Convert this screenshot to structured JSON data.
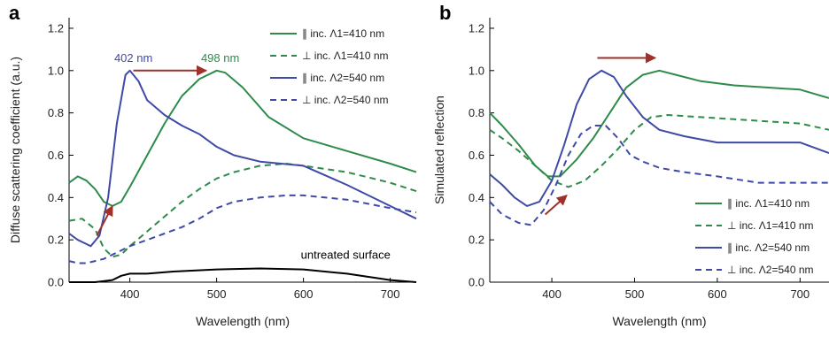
{
  "chart_data": [
    {
      "type": "line",
      "panel_label": "a",
      "title": "",
      "xlabel": "Wavelength (nm)",
      "ylabel": "Diffuse scattering coefficient (a.u.)",
      "xlim": [
        330,
        730
      ],
      "ylim": [
        0,
        1.25
      ],
      "xticks": [
        400,
        500,
        600,
        700
      ],
      "yticks": [
        0.0,
        0.2,
        0.4,
        0.6,
        0.8,
        1.0,
        1.2
      ],
      "grid": false,
      "legend_position": "top-right",
      "series": [
        {
          "name": "∥ inc. Λ1=410 nm",
          "color": "#2e8b4a",
          "dash": "solid",
          "x": [
            330,
            340,
            350,
            360,
            370,
            380,
            390,
            400,
            420,
            440,
            460,
            480,
            500,
            510,
            530,
            560,
            600,
            650,
            700,
            730
          ],
          "y": [
            0.47,
            0.5,
            0.48,
            0.44,
            0.38,
            0.36,
            0.38,
            0.45,
            0.6,
            0.75,
            0.88,
            0.96,
            1.0,
            0.99,
            0.92,
            0.78,
            0.68,
            0.62,
            0.56,
            0.52
          ]
        },
        {
          "name": "⊥ inc. Λ1=410 nm",
          "color": "#2e8b4a",
          "dash": "dashed",
          "x": [
            330,
            345,
            360,
            370,
            380,
            390,
            400,
            420,
            440,
            460,
            480,
            500,
            520,
            550,
            580,
            600,
            650,
            700,
            730
          ],
          "y": [
            0.29,
            0.3,
            0.25,
            0.16,
            0.12,
            0.13,
            0.17,
            0.24,
            0.31,
            0.38,
            0.44,
            0.49,
            0.52,
            0.55,
            0.56,
            0.55,
            0.52,
            0.47,
            0.43
          ]
        },
        {
          "name": "∥ inc. Λ2=540 nm",
          "color": "#3f4aa6",
          "dash": "solid",
          "x": [
            330,
            340,
            350,
            355,
            365,
            375,
            385,
            395,
            400,
            410,
            420,
            440,
            460,
            480,
            500,
            520,
            550,
            600,
            650,
            700,
            730
          ],
          "y": [
            0.23,
            0.2,
            0.18,
            0.17,
            0.22,
            0.4,
            0.75,
            0.98,
            1.0,
            0.95,
            0.86,
            0.79,
            0.74,
            0.7,
            0.64,
            0.6,
            0.57,
            0.55,
            0.46,
            0.36,
            0.3
          ]
        },
        {
          "name": "⊥ inc. Λ2=540 nm",
          "color": "#3f4aa6",
          "dash": "dashed",
          "x": [
            330,
            340,
            350,
            360,
            370,
            380,
            390,
            400,
            420,
            440,
            460,
            480,
            500,
            520,
            550,
            580,
            600,
            650,
            700,
            730
          ],
          "y": [
            0.1,
            0.09,
            0.09,
            0.1,
            0.11,
            0.13,
            0.15,
            0.17,
            0.2,
            0.23,
            0.26,
            0.3,
            0.35,
            0.38,
            0.4,
            0.41,
            0.41,
            0.39,
            0.35,
            0.33
          ]
        },
        {
          "name": "",
          "color": "#000000",
          "dash": "solid",
          "x": [
            330,
            360,
            380,
            390,
            400,
            420,
            450,
            500,
            550,
            600,
            650,
            700,
            730
          ],
          "y": [
            0.0,
            0.0,
            0.01,
            0.03,
            0.04,
            0.04,
            0.05,
            0.06,
            0.065,
            0.06,
            0.04,
            0.01,
            0.0
          ]
        }
      ],
      "annotations": [
        {
          "text": "402 nm",
          "color": "#3f4aa6",
          "x": 382,
          "y": 1.04
        },
        {
          "text": "498 nm",
          "color": "#2e8b4a",
          "x": 482,
          "y": 1.04
        },
        {
          "text": "untreated surface",
          "color": "#000000",
          "x": 597,
          "y": 0.11
        }
      ],
      "arrows": [
        {
          "color": "#a0302a",
          "x1": 362,
          "y1": 0.22,
          "x2": 380,
          "y2": 0.36
        },
        {
          "color": "#a0302a",
          "x1": 404,
          "y1": 1.0,
          "x2": 488,
          "y2": 1.0
        }
      ]
    },
    {
      "type": "line",
      "panel_label": "b",
      "title": "",
      "xlabel": "Wavelength (nm)",
      "ylabel": "Simulated reflection",
      "xlim": [
        325,
        735
      ],
      "ylim": [
        0,
        1.25
      ],
      "xticks": [
        400,
        500,
        600,
        700
      ],
      "yticks": [
        0.0,
        0.2,
        0.4,
        0.6,
        0.8,
        1.0,
        1.2
      ],
      "grid": false,
      "legend_position": "bottom-right",
      "series": [
        {
          "name": "∥ inc. Λ1=410 nm",
          "color": "#2e8b4a",
          "dash": "solid",
          "x": [
            325,
            340,
            360,
            380,
            395,
            410,
            430,
            450,
            470,
            490,
            510,
            530,
            550,
            580,
            620,
            660,
            700,
            735
          ],
          "y": [
            0.8,
            0.74,
            0.65,
            0.55,
            0.5,
            0.5,
            0.58,
            0.68,
            0.8,
            0.92,
            0.98,
            1.0,
            0.98,
            0.95,
            0.93,
            0.92,
            0.91,
            0.87
          ]
        },
        {
          "name": "⊥ inc. Λ1=410 nm",
          "color": "#2e8b4a",
          "dash": "dashed",
          "x": [
            325,
            340,
            360,
            380,
            400,
            420,
            440,
            460,
            480,
            500,
            520,
            540,
            580,
            620,
            660,
            700,
            735
          ],
          "y": [
            0.72,
            0.68,
            0.62,
            0.55,
            0.48,
            0.45,
            0.48,
            0.55,
            0.63,
            0.72,
            0.78,
            0.79,
            0.78,
            0.77,
            0.76,
            0.75,
            0.72
          ]
        },
        {
          "name": "∥ inc. Λ2=540 nm",
          "color": "#3f4aa6",
          "dash": "solid",
          "x": [
            325,
            340,
            355,
            370,
            385,
            400,
            415,
            430,
            445,
            460,
            475,
            490,
            510,
            530,
            560,
            600,
            650,
            700,
            735
          ],
          "y": [
            0.51,
            0.46,
            0.4,
            0.36,
            0.38,
            0.48,
            0.65,
            0.84,
            0.96,
            1.0,
            0.97,
            0.88,
            0.78,
            0.72,
            0.69,
            0.66,
            0.66,
            0.66,
            0.61
          ]
        },
        {
          "name": "⊥ inc. Λ2=540 nm",
          "color": "#3f4aa6",
          "dash": "dashed",
          "x": [
            325,
            340,
            360,
            375,
            390,
            405,
            420,
            435,
            450,
            465,
            480,
            495,
            510,
            530,
            560,
            600,
            650,
            700,
            735
          ],
          "y": [
            0.38,
            0.32,
            0.28,
            0.27,
            0.34,
            0.46,
            0.6,
            0.7,
            0.74,
            0.74,
            0.68,
            0.6,
            0.57,
            0.54,
            0.52,
            0.5,
            0.47,
            0.47,
            0.47
          ]
        }
      ],
      "annotations": [],
      "arrows": [
        {
          "color": "#a0302a",
          "x1": 392,
          "y1": 0.32,
          "x2": 418,
          "y2": 0.41
        },
        {
          "color": "#a0302a",
          "x1": 455,
          "y1": 1.06,
          "x2": 525,
          "y2": 1.06
        }
      ]
    }
  ]
}
